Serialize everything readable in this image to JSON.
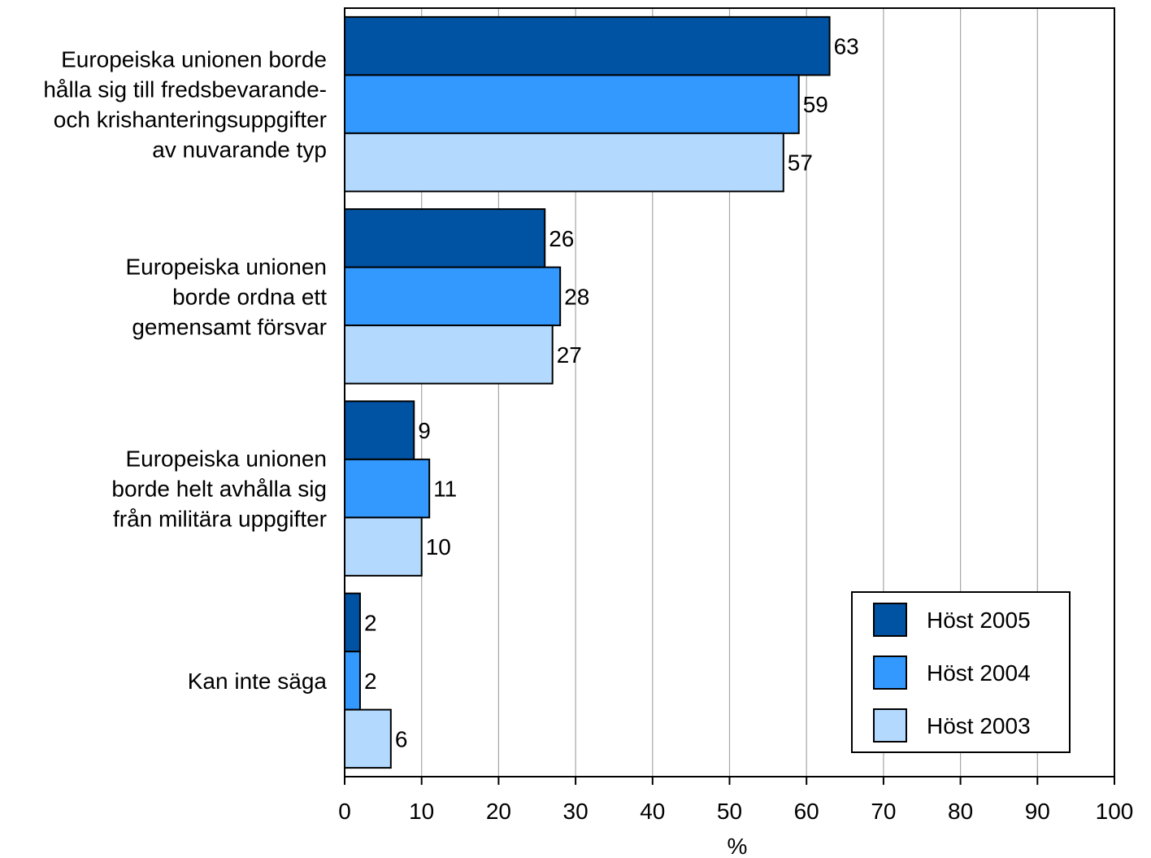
{
  "chart_data": {
    "type": "bar",
    "orientation": "horizontal",
    "categories": [
      [
        "Europeiska unionen borde",
        "hålla sig till fredsbevarande-",
        "och krishanteringsuppgifter",
        "av nuvarande typ"
      ],
      [
        "Europeiska unionen",
        "borde ordna ett",
        "gemensamt försvar"
      ],
      [
        "Europeiska unionen",
        "borde helt avhålla sig",
        "från militära uppgifter"
      ],
      [
        "Kan inte säga"
      ]
    ],
    "series": [
      {
        "name": "Höst 2005",
        "color": "#0052A3",
        "values": [
          63,
          26,
          9,
          2
        ]
      },
      {
        "name": "Höst 2004",
        "color": "#3399FF",
        "values": [
          59,
          28,
          11,
          2
        ]
      },
      {
        "name": "Höst 2003",
        "color": "#B3D9FF",
        "values": [
          57,
          27,
          10,
          6
        ]
      }
    ],
    "xlabel": "%",
    "xlim": [
      0,
      100
    ],
    "xticks": [
      0,
      10,
      20,
      30,
      40,
      50,
      60,
      70,
      80,
      90,
      100
    ],
    "grid": true,
    "legend_position": "bottom-right",
    "data_labels": true
  }
}
